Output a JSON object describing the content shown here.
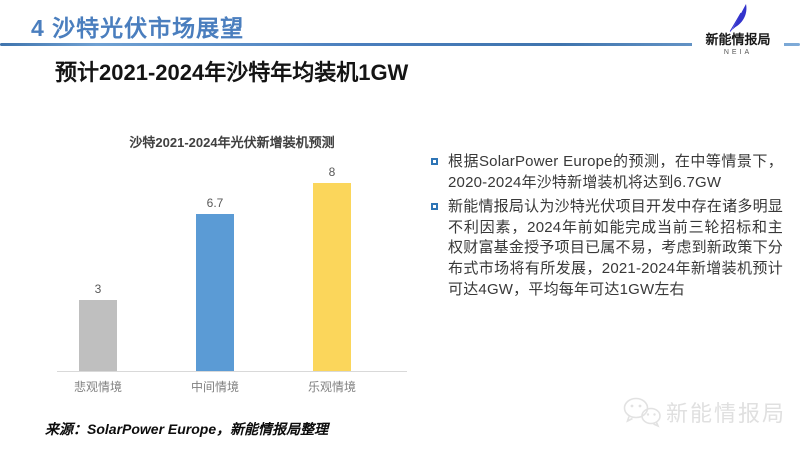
{
  "header": {
    "title": "4 沙特光伏市场展望",
    "accent_color": "#4a7ebe"
  },
  "logo": {
    "name": "新能情报局",
    "sub": "NEIA",
    "icon": "quill-feather-icon",
    "feather_color": "#3333cc"
  },
  "slide_title": "预计2021-2024年沙特年均装机1GW",
  "chart_data": {
    "type": "bar",
    "title": "沙特2021-2024年光伏新增装机预测",
    "categories": [
      "悲观情境",
      "中间情境",
      "乐观情境"
    ],
    "values": [
      3,
      6.7,
      8
    ],
    "value_labels": [
      "3",
      "6.7",
      "8"
    ],
    "bar_colors": [
      "#bfbfbf",
      "#5b9bd5",
      "#fbd65b"
    ],
    "xlabel": "",
    "ylabel": "",
    "ylim": [
      0,
      9
    ],
    "grid": false,
    "legend": "none",
    "axis_line_color": "#d9d9d9"
  },
  "bullets": [
    {
      "text": "根据SolarPower Europe的预测，在中等情景下，2020-2024年沙特新增装机将达到6.7GW"
    },
    {
      "text": "新能情报局认为沙特光伏项目开发中存在诸多明显不利因素，2024年前如能完成当前三轮招标和主权财富基金授予项目已属不易，考虑到新政策下分布式市场将有所发展，2021-2024年新增装机预计可达4GW，平均每年可达1GW左右"
    }
  ],
  "source_note": "来源：SolarPower Europe，新能情报局整理",
  "watermark": {
    "text": "新能情报局",
    "icon": "wechat-icon"
  }
}
